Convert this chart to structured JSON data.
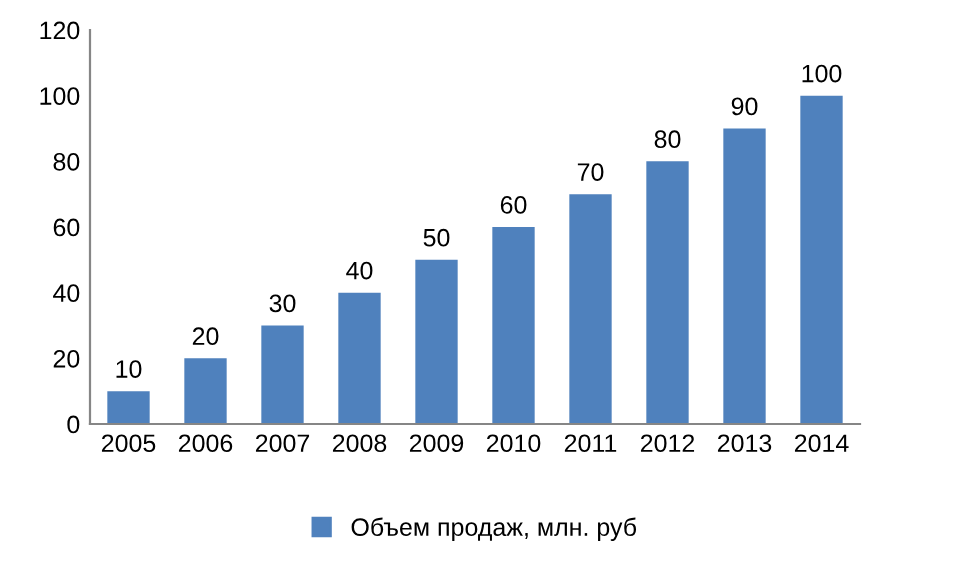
{
  "chart_data": {
    "type": "bar",
    "categories": [
      "2005",
      "2006",
      "2007",
      "2008",
      "2009",
      "2010",
      "2011",
      "2012",
      "2013",
      "2014"
    ],
    "series": [
      {
        "name": "Объем продаж, млн. руб",
        "color": "#4f81bd",
        "values": [
          10,
          20,
          30,
          40,
          50,
          60,
          70,
          80,
          90,
          100
        ]
      }
    ],
    "ylim": [
      0,
      120
    ],
    "yticks": [
      0,
      20,
      40,
      60,
      80,
      100,
      120
    ],
    "grid": false,
    "legend": "bottom",
    "data_labels": true
  }
}
